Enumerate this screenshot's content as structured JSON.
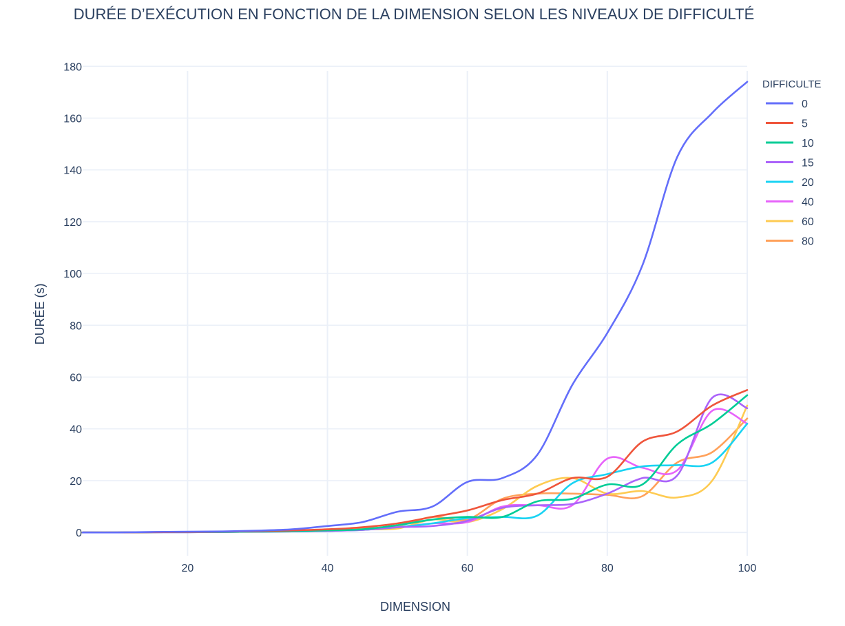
{
  "chart_data": {
    "type": "line",
    "title": "DURÉE D’EXÉCUTION EN FONCTION DE LA DIMENSION SELON LES NIVEAUX DE DIFFICULTÉ",
    "xlabel": "DIMENSION",
    "ylabel": "DURÉE (s)",
    "xlim": [
      5,
      100
    ],
    "ylim": [
      -9,
      183
    ],
    "x_ticks": [
      20,
      40,
      60,
      80,
      100
    ],
    "y_ticks": [
      0,
      20,
      40,
      60,
      80,
      100,
      120,
      140,
      160,
      180
    ],
    "grid": true,
    "legend_title": "DIFFICULTE",
    "legend_position": "top-right",
    "x": [
      5,
      10,
      15,
      20,
      25,
      30,
      35,
      40,
      45,
      50,
      55,
      60,
      65,
      70,
      75,
      80,
      85,
      90,
      95,
      100
    ],
    "series": [
      {
        "name": "0",
        "color": "#636efa",
        "values": [
          0,
          0,
          0.2,
          0.3,
          0.4,
          0.7,
          1.2,
          2.5,
          4,
          8,
          10,
          19.5,
          21,
          30,
          57,
          77,
          103,
          145,
          162,
          174
        ]
      },
      {
        "name": "5",
        "color": "#ef553b",
        "values": [
          0,
          0,
          0.1,
          0.2,
          0.3,
          0.5,
          0.8,
          1.2,
          2,
          3.5,
          6,
          8.5,
          12.5,
          15,
          21,
          21.5,
          35,
          39,
          49,
          55
        ]
      },
      {
        "name": "10",
        "color": "#00cc96",
        "values": [
          0,
          0,
          0.1,
          0.2,
          0.2,
          0.3,
          0.5,
          0.8,
          1.2,
          2.8,
          5,
          6,
          6,
          12,
          13,
          18.5,
          18.5,
          34,
          42,
          53
        ]
      },
      {
        "name": "15",
        "color": "#ab63fa",
        "values": [
          0,
          0,
          0.1,
          0.1,
          0.2,
          0.3,
          0.4,
          0.6,
          1,
          2,
          2.5,
          4.5,
          9.5,
          10.5,
          11,
          15,
          21,
          22,
          52,
          48
        ]
      },
      {
        "name": "20",
        "color": "#19d3f3",
        "values": [
          0,
          0,
          0.1,
          0.1,
          0.2,
          0.3,
          0.4,
          0.6,
          1,
          2,
          3.5,
          5.5,
          6,
          6.5,
          19,
          22.5,
          25.5,
          26,
          27,
          42
        ]
      },
      {
        "name": "40",
        "color": "#e763fa",
        "values": [
          0,
          0,
          0.1,
          0.1,
          0.2,
          0.3,
          0.4,
          0.6,
          1,
          2,
          3.5,
          4,
          10,
          10.5,
          10.5,
          28.5,
          25,
          24,
          47,
          42
        ]
      },
      {
        "name": "60",
        "color": "#fecb52",
        "values": [
          0,
          0,
          0.1,
          0.1,
          0.2,
          0.3,
          0.4,
          0.6,
          1.2,
          1.5,
          5,
          4,
          9,
          18,
          21,
          15,
          16,
          13.5,
          20,
          49
        ]
      },
      {
        "name": "80",
        "color": "#ffa15a",
        "values": [
          0,
          0,
          0.1,
          0.2,
          0.3,
          0.4,
          0.6,
          0.8,
          1.5,
          2.5,
          6,
          5,
          13,
          15,
          15,
          14.5,
          14,
          27,
          31,
          44
        ]
      }
    ]
  }
}
